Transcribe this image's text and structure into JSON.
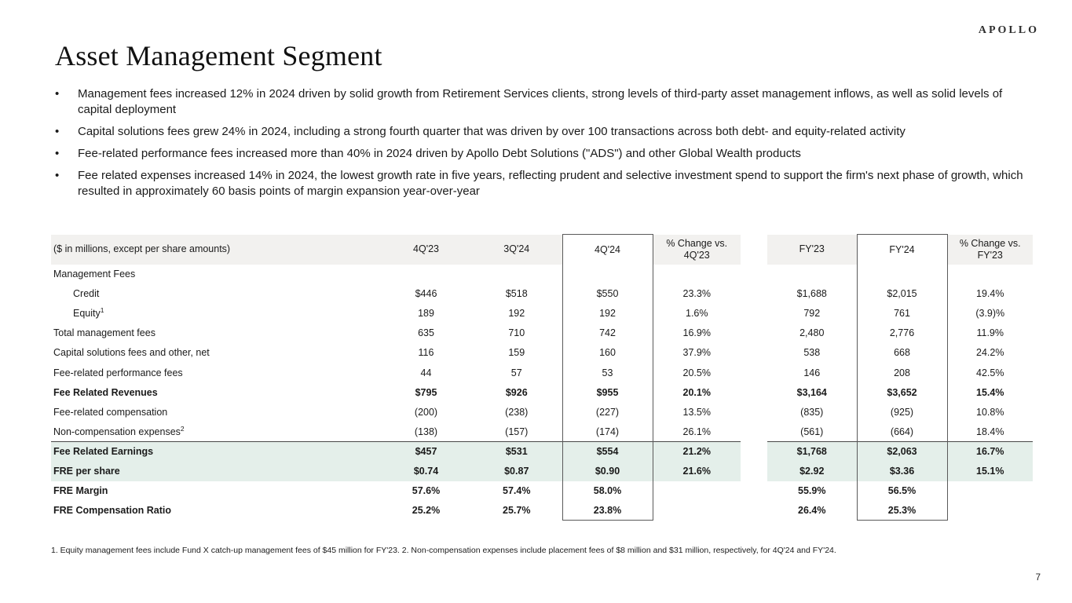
{
  "logo": "APOLLO",
  "title": "Asset Management Segment",
  "bullets": [
    "Management fees increased 12% in 2024 driven by solid growth from Retirement Services clients, strong levels of third-party asset management inflows, as well as solid levels of capital deployment",
    "Capital solutions fees grew 24% in 2024, including a strong fourth quarter that was driven by over 100 transactions across both debt- and equity-related activity",
    "Fee-related performance fees increased more than 40% in 2024 driven by Apollo Debt Solutions (\"ADS\") and other Global Wealth products",
    "Fee related expenses increased 14% in 2024, the lowest growth rate in five years, reflecting prudent and selective investment spend to support the firm's next phase of growth, which resulted in approximately 60 basis points of margin expansion year-over-year"
  ],
  "table": {
    "header": {
      "label_col": "($ in millions, except per share amounts)",
      "cols": [
        "4Q'23",
        "3Q'24",
        "4Q'24",
        "% Change vs. 4Q'23",
        "FY'23",
        "FY'24",
        "% Change vs. FY'23"
      ]
    },
    "rows": [
      {
        "label": "Management Fees",
        "style": "",
        "values": [
          "",
          "",
          "",
          "",
          "",
          "",
          ""
        ]
      },
      {
        "label": "Credit",
        "style": "indent",
        "values": [
          "$446",
          "$518",
          "$550",
          "23.3%",
          "$1,688",
          "$2,015",
          "19.4%"
        ]
      },
      {
        "label": "Equity",
        "sup": "1",
        "style": "indent",
        "values": [
          "189",
          "192",
          "192",
          "1.6%",
          "792",
          "761",
          "(3.9)%"
        ]
      },
      {
        "label": "Total management fees",
        "style": "",
        "values": [
          "635",
          "710",
          "742",
          "16.9%",
          "2,480",
          "2,776",
          "11.9%"
        ]
      },
      {
        "label": "Capital solutions fees and other, net",
        "style": "",
        "values": [
          "116",
          "159",
          "160",
          "37.9%",
          "538",
          "668",
          "24.2%"
        ]
      },
      {
        "label": "Fee-related performance fees",
        "style": "",
        "values": [
          "44",
          "57",
          "53",
          "20.5%",
          "146",
          "208",
          "42.5%"
        ]
      },
      {
        "label": "Fee Related Revenues",
        "style": "bold",
        "values": [
          "$795",
          "$926",
          "$955",
          "20.1%",
          "$3,164",
          "$3,652",
          "15.4%"
        ]
      },
      {
        "label": "Fee-related compensation",
        "style": "",
        "values": [
          "(200)",
          "(238)",
          "(227)",
          "13.5%",
          "(835)",
          "(925)",
          "10.8%"
        ]
      },
      {
        "label": "Non-compensation expenses",
        "sup": "2",
        "style": "",
        "values": [
          "(138)",
          "(157)",
          "(174)",
          "26.1%",
          "(561)",
          "(664)",
          "18.4%"
        ]
      },
      {
        "label": "Fee Related Earnings",
        "style": "bold highlight topline",
        "values": [
          "$457",
          "$531",
          "$554",
          "21.2%",
          "$1,768",
          "$2,063",
          "16.7%"
        ]
      },
      {
        "label": "FRE per share",
        "style": "bold highlight",
        "values": [
          "$0.74",
          "$0.87",
          "$0.90",
          "21.6%",
          "$2.92",
          "$3.36",
          "15.1%"
        ]
      },
      {
        "label": "FRE Margin",
        "style": "bold",
        "values": [
          "57.6%",
          "57.4%",
          "58.0%",
          "",
          "55.9%",
          "56.5%",
          ""
        ]
      },
      {
        "label": "FRE Compensation Ratio",
        "style": "bold",
        "values": [
          "25.2%",
          "25.7%",
          "23.8%",
          "",
          "26.4%",
          "25.3%",
          ""
        ]
      }
    ]
  },
  "footnote": "1. Equity management fees include Fund X catch-up management fees of $45 million for FY'23. 2. Non-compensation expenses include placement fees of $8 million and $31 million, respectively, for 4Q'24 and FY'24.",
  "page_number": "7",
  "colors": {
    "header_bg": "#f2f1ef",
    "highlight_bg": "#e4efea",
    "box_border": "#5a5a5a",
    "rule": "#474747"
  }
}
